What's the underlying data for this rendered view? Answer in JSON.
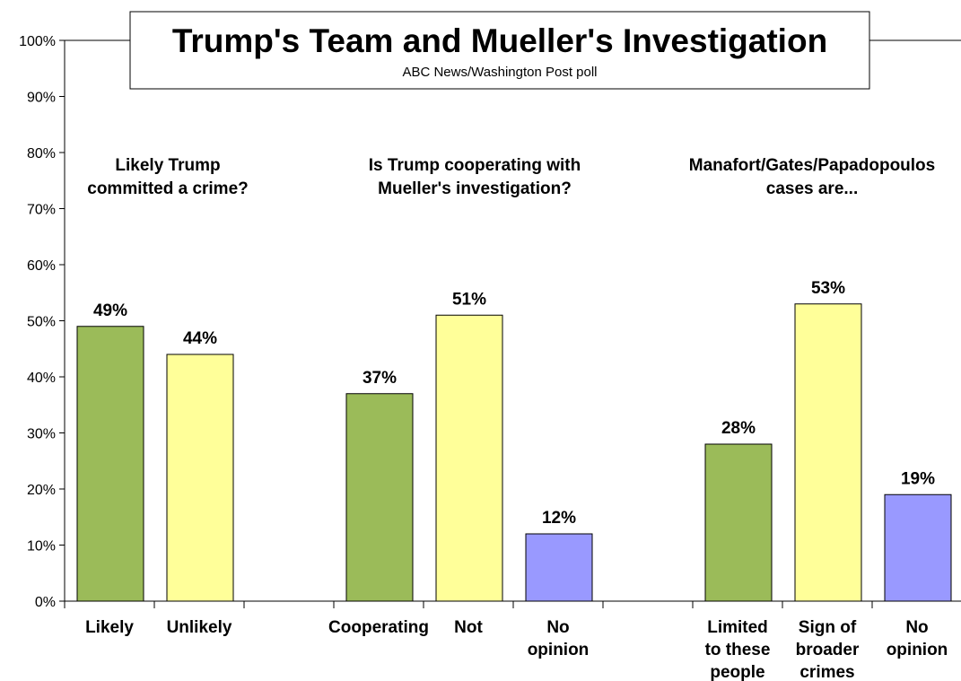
{
  "chart_data": {
    "type": "bar",
    "title": "Trump's Team and Mueller's Investigation",
    "subtitle": "ABC News/Washington  Post poll",
    "ylim": [
      0,
      100
    ],
    "y_ticks": [
      "0%",
      "10%",
      "20%",
      "30%",
      "40%",
      "50%",
      "60%",
      "70%",
      "80%",
      "90%",
      "100%"
    ],
    "grid": false,
    "colors": {
      "green": "#9bbb59",
      "yellow": "#ffff99",
      "blue": "#9999ff"
    },
    "groups": [
      {
        "question": [
          "Likely Trump",
          "committed a crime?"
        ],
        "bars": [
          {
            "label": [
              "Likely"
            ],
            "value": 49,
            "value_label": "49%",
            "color": "green"
          },
          {
            "label": [
              "Unlikely"
            ],
            "value": 44,
            "value_label": "44%",
            "color": "yellow"
          }
        ]
      },
      {
        "question": [
          "Is Trump cooperating with",
          "Mueller's investigation?"
        ],
        "bars": [
          {
            "label": [
              "Cooperating"
            ],
            "value": 37,
            "value_label": "37%",
            "color": "green"
          },
          {
            "label": [
              "Not"
            ],
            "value": 51,
            "value_label": "51%",
            "color": "yellow"
          },
          {
            "label": [
              "No",
              "opinion"
            ],
            "value": 12,
            "value_label": "12%",
            "color": "blue"
          }
        ]
      },
      {
        "question": [
          "Manafort/Gates/Papadopoulos",
          "cases are..."
        ],
        "bars": [
          {
            "label": [
              "Limited",
              "to these",
              "people"
            ],
            "value": 28,
            "value_label": "28%",
            "color": "green"
          },
          {
            "label": [
              "Sign of",
              "broader",
              "crimes"
            ],
            "value": 53,
            "value_label": "53%",
            "color": "yellow"
          },
          {
            "label": [
              "No",
              "opinion"
            ],
            "value": 19,
            "value_label": "19%",
            "color": "blue"
          }
        ]
      }
    ]
  }
}
